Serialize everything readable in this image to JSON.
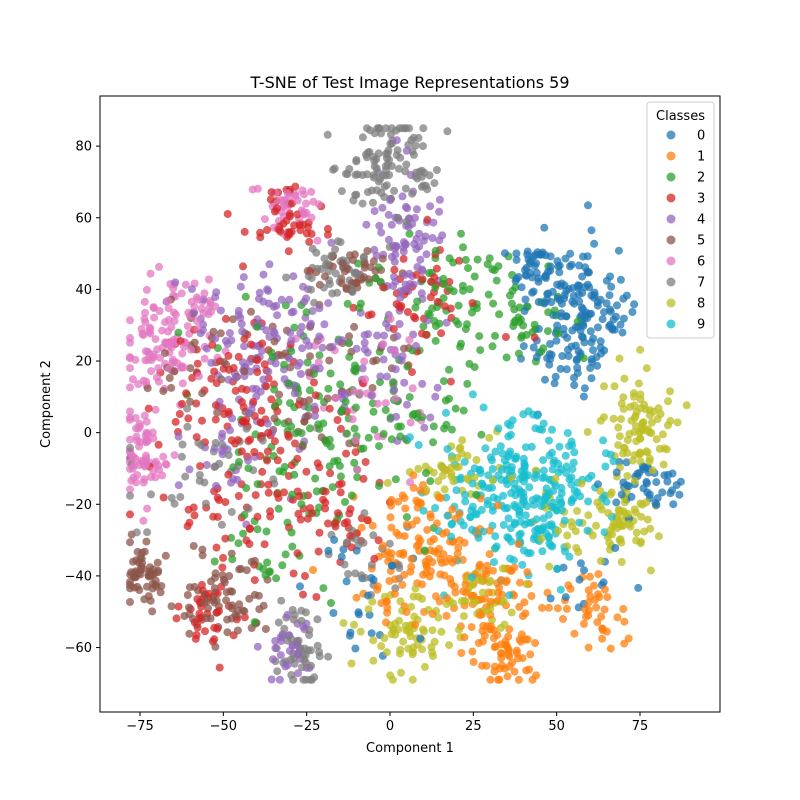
{
  "chart_data": {
    "type": "scatter",
    "title": "T-SNE of Test Image Representations 59",
    "xlabel": "Component 1",
    "ylabel": "Component 2",
    "xlim": [
      -87,
      99
    ],
    "ylim": [
      -78,
      94
    ],
    "xticks": [
      -75,
      -50,
      -25,
      0,
      25,
      50,
      75
    ],
    "yticks": [
      -60,
      -40,
      -20,
      0,
      20,
      40,
      60,
      80
    ],
    "xtick_labels": [
      "−75",
      "−50",
      "−25",
      "0",
      "25",
      "50",
      "75"
    ],
    "ytick_labels": [
      "−60",
      "−40",
      "−20",
      "0",
      "20",
      "40",
      "60",
      "80"
    ],
    "grid": false,
    "legend": {
      "title": "Classes",
      "placement": "top-right"
    },
    "series": [
      {
        "name": "0",
        "color": "#1f77b4",
        "clusters": [
          [
            58,
            33,
            7,
            8,
            130
          ],
          [
            45,
            45,
            5,
            5,
            50
          ],
          [
            77,
            -15,
            6,
            4,
            45
          ],
          [
            50,
            20,
            6,
            6,
            30
          ],
          [
            -10,
            -45,
            8,
            8,
            25
          ],
          [
            60,
            -40,
            7,
            7,
            15
          ]
        ]
      },
      {
        "name": "1",
        "color": "#ff7f0e",
        "clusters": [
          [
            10,
            -30,
            10,
            8,
            110
          ],
          [
            30,
            -45,
            8,
            8,
            80
          ],
          [
            35,
            -62,
            5,
            4,
            45
          ],
          [
            60,
            -50,
            6,
            6,
            40
          ],
          [
            0,
            -45,
            5,
            5,
            20
          ]
        ]
      },
      {
        "name": "2",
        "color": "#2ca02c",
        "clusters": [
          [
            -10,
            10,
            20,
            20,
            140
          ],
          [
            20,
            40,
            10,
            10,
            60
          ],
          [
            -25,
            0,
            10,
            10,
            40
          ],
          [
            40,
            30,
            8,
            6,
            30
          ],
          [
            -30,
            -35,
            10,
            10,
            30
          ]
        ]
      },
      {
        "name": "3",
        "color": "#d62728",
        "clusters": [
          [
            -40,
            -10,
            14,
            20,
            120
          ],
          [
            -50,
            10,
            12,
            12,
            60
          ],
          [
            -30,
            60,
            5,
            4,
            45
          ],
          [
            10,
            35,
            10,
            10,
            50
          ],
          [
            -55,
            -50,
            5,
            5,
            30
          ],
          [
            -15,
            -20,
            10,
            8,
            40
          ]
        ]
      },
      {
        "name": "4",
        "color": "#9467bd",
        "clusters": [
          [
            -35,
            25,
            12,
            12,
            130
          ],
          [
            5,
            55,
            6,
            10,
            80
          ],
          [
            0,
            20,
            10,
            10,
            50
          ],
          [
            -30,
            -60,
            4,
            5,
            30
          ],
          [
            -50,
            0,
            8,
            8,
            30
          ]
        ]
      },
      {
        "name": "5",
        "color": "#8c564b",
        "clusters": [
          [
            -73,
            -40,
            3,
            4,
            60
          ],
          [
            -50,
            -45,
            8,
            6,
            70
          ],
          [
            -20,
            15,
            12,
            12,
            50
          ],
          [
            -10,
            45,
            6,
            3,
            40
          ],
          [
            -55,
            20,
            8,
            8,
            30
          ]
        ]
      },
      {
        "name": "6",
        "color": "#e377c2",
        "clusters": [
          [
            -67,
            25,
            7,
            8,
            90
          ],
          [
            -75,
            -5,
            4,
            8,
            70
          ],
          [
            -30,
            62,
            5,
            4,
            40
          ],
          [
            -10,
            10,
            10,
            10,
            40
          ],
          [
            -60,
            35,
            6,
            4,
            30
          ]
        ]
      },
      {
        "name": "7",
        "color": "#7f7f7f",
        "clusters": [
          [
            0,
            75,
            7,
            7,
            110
          ],
          [
            -28,
            -60,
            4,
            6,
            50
          ],
          [
            -15,
            45,
            6,
            4,
            40
          ],
          [
            -55,
            -10,
            10,
            10,
            40
          ],
          [
            -5,
            -35,
            6,
            6,
            25
          ]
        ]
      },
      {
        "name": "8",
        "color": "#bcbd22",
        "clusters": [
          [
            75,
            2,
            5,
            8,
            90
          ],
          [
            70,
            -25,
            5,
            5,
            60
          ],
          [
            5,
            -55,
            8,
            6,
            70
          ],
          [
            25,
            -45,
            6,
            5,
            40
          ],
          [
            20,
            -10,
            8,
            6,
            40
          ],
          [
            55,
            -25,
            6,
            6,
            25
          ]
        ]
      },
      {
        "name": "9",
        "color": "#17becf",
        "clusters": [
          [
            38,
            -15,
            10,
            10,
            200
          ],
          [
            45,
            -28,
            5,
            5,
            40
          ],
          [
            55,
            -15,
            6,
            6,
            30
          ],
          [
            20,
            -20,
            6,
            6,
            20
          ]
        ]
      }
    ]
  }
}
